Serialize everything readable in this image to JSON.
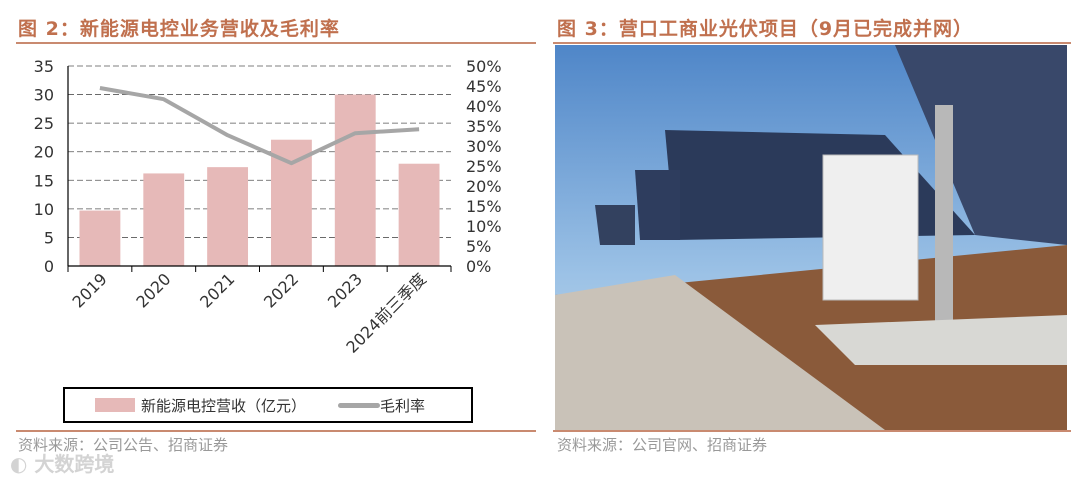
{
  "left": {
    "title": "图 2：新能源电控业务营收及毛利率",
    "source": "资料来源：公司公告、招商证券"
  },
  "right": {
    "title": "图 3：营口工商业光伏项目（9月已完成并网）",
    "source": "资料来源：公司官网、招商证券",
    "photo_description_icon": "solar-farm-photo"
  },
  "watermark": "大数跨境",
  "chart_data": {
    "type": "bar+line",
    "categories": [
      "2019",
      "2020",
      "2021",
      "2022",
      "2023",
      "2024前三季度"
    ],
    "series": [
      {
        "name": "新能源电控营收（亿元）",
        "type": "bar",
        "axis": "left",
        "values": [
          9.7,
          16.2,
          17.3,
          22.1,
          30.0,
          17.9
        ],
        "color": "#e6b9b8"
      },
      {
        "name": "毛利率",
        "type": "line",
        "axis": "right",
        "values": [
          44.5,
          41.7,
          32.7,
          25.7,
          33.2,
          34.2
        ],
        "color": "#a6a6a6"
      }
    ],
    "ylim_left": [
      0,
      35
    ],
    "yticks_left": [
      "0",
      "5",
      "10",
      "15",
      "20",
      "25",
      "30",
      "35"
    ],
    "ylim_right": [
      0,
      50
    ],
    "yticks_right": [
      "0%",
      "5%",
      "10%",
      "15%",
      "20%",
      "25%",
      "30%",
      "35%",
      "40%",
      "45%",
      "50%"
    ],
    "grid": true,
    "legend": "bottom"
  }
}
